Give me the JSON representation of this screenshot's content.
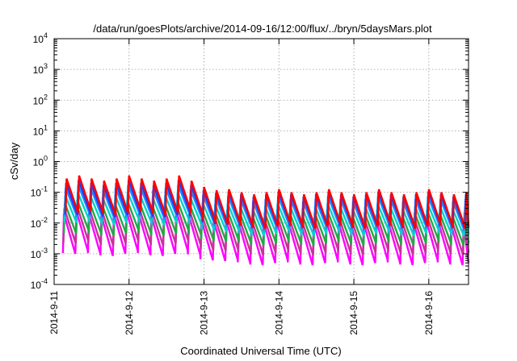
{
  "chart_data": {
    "type": "line",
    "title": "/data/run/goesPlots/archive/2014-09-16/12:00/flux/../bryn/5daysMars.plot",
    "xlabel": "Coordinated Universal Time (UTC)",
    "ylabel": "cSv/day",
    "yscale": "log",
    "ylim_exponent": [
      -4,
      4
    ],
    "y_ticks": [
      {
        "base": "10",
        "exp": "-4"
      },
      {
        "base": "10",
        "exp": "-3"
      },
      {
        "base": "10",
        "exp": "-2"
      },
      {
        "base": "10",
        "exp": "-1"
      },
      {
        "base": "10",
        "exp": "0"
      },
      {
        "base": "10",
        "exp": "1"
      },
      {
        "base": "10",
        "exp": "2"
      },
      {
        "base": "10",
        "exp": "3"
      },
      {
        "base": "10",
        "exp": "4"
      }
    ],
    "x_ticks": [
      "2014-9-11",
      "2014-9-12",
      "2014-9-13",
      "2014-9-14",
      "2014-9-15",
      "2014-9-16"
    ],
    "xlim_days": [
      0,
      5.53
    ],
    "grid": true,
    "series": [
      {
        "color": "#ff0000",
        "peak_early": 0.28,
        "peak_late": 0.1,
        "ratio": 13
      },
      {
        "color": "#1e3cff",
        "peak_early": 0.2,
        "peak_late": 0.085,
        "ratio": 11
      },
      {
        "color": "#1e8cff",
        "peak_early": 0.14,
        "peak_late": 0.06,
        "ratio": 9
      },
      {
        "color": "#00d2c8",
        "peak_early": 0.08,
        "peak_late": 0.035,
        "ratio": 8
      },
      {
        "color": "#22aa44",
        "peak_early": 0.045,
        "peak_late": 0.022,
        "ratio": 10
      },
      {
        "color": "#c8329a",
        "peak_early": 0.03,
        "peak_late": 0.015,
        "ratio": 14
      },
      {
        "color": "#ff00ff",
        "peak_early": 0.02,
        "peak_late": 0.01,
        "ratio": 20
      }
    ],
    "oscillation": {
      "period_days": 0.1667,
      "transition_day": 1.95
    }
  }
}
